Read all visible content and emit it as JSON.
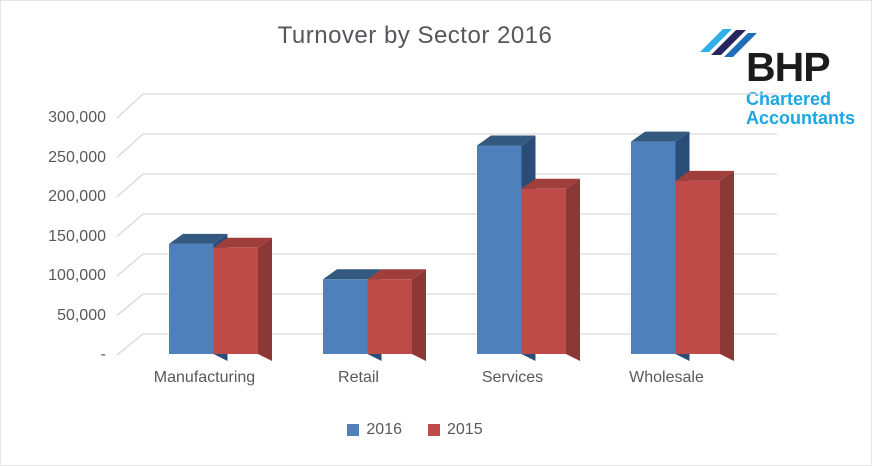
{
  "logo": {
    "name": "BHP",
    "line1": "Chartered",
    "line2": "Accountants",
    "name_color": "#1c1c1c",
    "sub_color": "#1ca6e2",
    "stripe_colors": [
      "#2fafe8",
      "#27255f",
      "#1e6fb8"
    ]
  },
  "chart_data": {
    "type": "bar",
    "style": "3d-clustered-column",
    "title": "Turnover by Sector 2016",
    "categories": [
      "Manufacturing",
      "Retail",
      "Services",
      "Wholesale"
    ],
    "series": [
      {
        "name": "2016",
        "color": "#4e81bc",
        "color_top": "#33597f",
        "color_side": "#2a4d77",
        "values": [
          140000,
          95000,
          265000,
          270000
        ]
      },
      {
        "name": "2015",
        "color": "#bf4b49",
        "color_top": "#a03e3c",
        "color_side": "#8c3836",
        "values": [
          135000,
          95000,
          210000,
          220000
        ]
      }
    ],
    "ylim": [
      0,
      300000
    ],
    "ytick_step": 50000,
    "ytick_labels": [
      "-",
      "50,000",
      "100,000",
      "150,000",
      "200,000",
      "250,000",
      "300,000"
    ],
    "grid": true,
    "legend_position": "bottom",
    "colors": {
      "gridline": "#d9d9d9",
      "axis_text": "#595959",
      "title_text": "#56565e"
    }
  }
}
